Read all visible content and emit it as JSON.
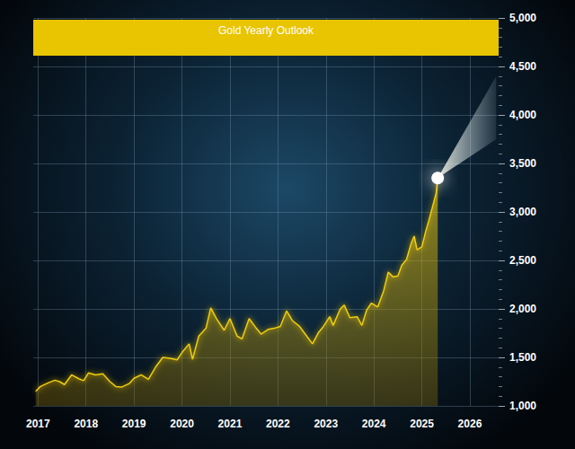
{
  "chart_data": {
    "type": "area",
    "title": "Gold Yearly Outlook",
    "color": "#f2cd0a",
    "grid": true,
    "x": [
      2016.95,
      2017.05,
      2017.2,
      2017.35,
      2017.45,
      2017.55,
      2017.7,
      2017.85,
      2017.95,
      2018.05,
      2018.2,
      2018.35,
      2018.5,
      2018.62,
      2018.75,
      2018.9,
      2019.0,
      2019.15,
      2019.3,
      2019.45,
      2019.6,
      2019.75,
      2019.9,
      2020.0,
      2020.15,
      2020.22,
      2020.35,
      2020.5,
      2020.6,
      2020.72,
      2020.88,
      2021.0,
      2021.15,
      2021.25,
      2021.4,
      2021.55,
      2021.65,
      2021.8,
      2021.92,
      2022.05,
      2022.18,
      2022.3,
      2022.45,
      2022.6,
      2022.72,
      2022.85,
      2022.95,
      2023.08,
      2023.15,
      2023.3,
      2023.38,
      2023.5,
      2023.65,
      2023.75,
      2023.85,
      2023.95,
      2024.08,
      2024.2,
      2024.3,
      2024.4,
      2024.5,
      2024.58,
      2024.68,
      2024.78,
      2024.84,
      2024.9,
      2025.0,
      2025.08,
      2025.15,
      2025.22,
      2025.3,
      2025.33
    ],
    "values": [
      1150,
      1200,
      1235,
      1265,
      1250,
      1220,
      1320,
      1280,
      1260,
      1340,
      1320,
      1330,
      1250,
      1200,
      1195,
      1230,
      1285,
      1320,
      1275,
      1400,
      1500,
      1490,
      1475,
      1550,
      1640,
      1480,
      1720,
      1800,
      2010,
      1900,
      1780,
      1900,
      1720,
      1690,
      1900,
      1800,
      1740,
      1790,
      1800,
      1820,
      1980,
      1880,
      1820,
      1720,
      1640,
      1760,
      1820,
      1920,
      1830,
      2000,
      2040,
      1910,
      1920,
      1830,
      1990,
      2060,
      2020,
      2180,
      2380,
      2330,
      2340,
      2450,
      2510,
      2680,
      2750,
      2610,
      2640,
      2800,
      2920,
      3050,
      3200,
      3350
    ],
    "forecast_band": {
      "x": [
        2025.33,
        2026.55
      ],
      "low": [
        3350,
        3750
      ],
      "high": [
        3350,
        4400
      ]
    },
    "xlim": [
      2016.9,
      2026.6
    ],
    "xticks": [
      2017,
      2018,
      2019,
      2020,
      2021,
      2022,
      2023,
      2024,
      2025,
      2026
    ],
    "ylim": [
      1000,
      5000
    ],
    "yticks": [
      {
        "value": 1000,
        "label": "1,000"
      },
      {
        "value": 1500,
        "label": "1,500"
      },
      {
        "value": 2000,
        "label": "2,000"
      },
      {
        "value": 2500,
        "label": "2,500"
      },
      {
        "value": 3000,
        "label": "3,000"
      },
      {
        "value": 3500,
        "label": "3,500"
      },
      {
        "value": 4000,
        "label": "4,000"
      },
      {
        "value": 4500,
        "label": "4,500"
      },
      {
        "value": 5000,
        "label": "5,000"
      }
    ]
  }
}
